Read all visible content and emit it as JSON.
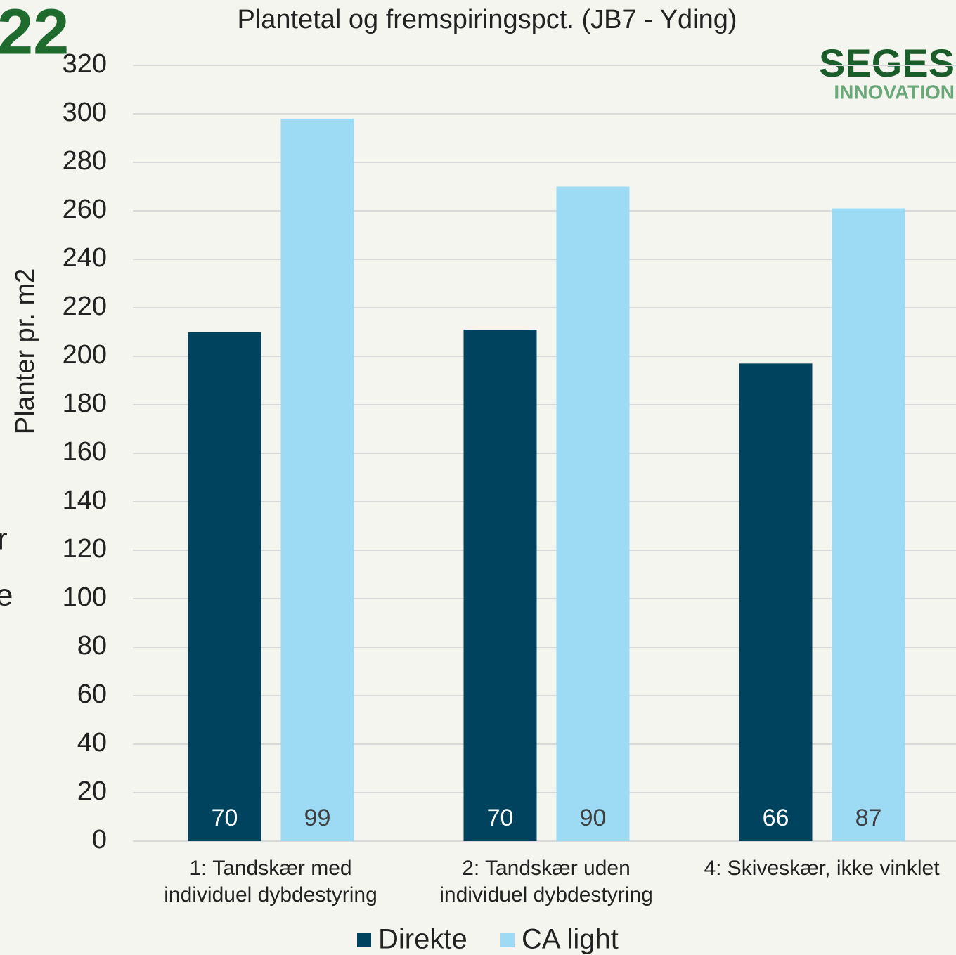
{
  "page_fragments": [
    "22",
    "r",
    "e"
  ],
  "logo": {
    "name": "SEGES",
    "subtitle": "INNOVATION"
  },
  "chart_data": {
    "type": "bar",
    "title": "Plantetal og fremspiringspct. (JB7 - Yding)",
    "y_label": "Planter pr. m2",
    "categories": [
      "1: Tandskær med\nindividuel dybdestyring",
      "2: Tandskær uden\nindividuel dybdestyring",
      "4: Skiveskær, ikke vinklet"
    ],
    "series": [
      {
        "name": "Direkte",
        "color": "#00435e",
        "label_color": "#ffffff",
        "values": [
          210,
          211,
          197
        ],
        "bar_labels": [
          70,
          70,
          66
        ]
      },
      {
        "name": "CA light",
        "color": "#9ddbf5",
        "label_color": "#404040",
        "values": [
          298,
          270,
          261
        ],
        "bar_labels": [
          99,
          90,
          87
        ]
      }
    ],
    "ylim": [
      0,
      320
    ],
    "yticks": [
      0,
      20,
      40,
      60,
      80,
      100,
      120,
      140,
      160,
      180,
      200,
      220,
      240,
      260,
      280,
      300,
      320
    ],
    "grid": true,
    "legend": "bottom"
  }
}
